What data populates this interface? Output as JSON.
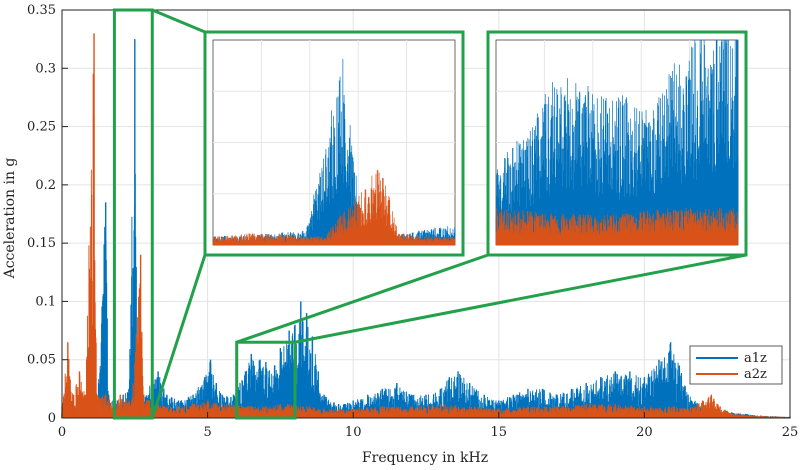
{
  "chart_data": {
    "type": "line",
    "title": "",
    "xlabel": "Frequency in kHz",
    "ylabel": "Acceleration in g",
    "xlim": [
      0,
      25
    ],
    "ylim": [
      0,
      0.35
    ],
    "grid": true,
    "x_ticks": [
      0,
      5,
      10,
      15,
      20,
      25
    ],
    "x_tick_labels": [
      "0",
      "5",
      "10",
      "15",
      "20",
      "25"
    ],
    "y_ticks": [
      0,
      0.05,
      0.1,
      0.15,
      0.2,
      0.25,
      0.3,
      0.35
    ],
    "y_tick_labels": [
      "0",
      "0.05",
      "0.1",
      "0.15",
      "0.2",
      "0.25",
      "0.3",
      "0.35"
    ],
    "legend_position": "lower-right",
    "series": [
      {
        "name": "a1z",
        "color": "#0072BD",
        "points": [
          [
            0.0,
            0.004
          ],
          [
            0.3,
            0.01
          ],
          [
            0.6,
            0.02
          ],
          [
            0.9,
            0.015
          ],
          [
            1.2,
            0.01
          ],
          [
            1.5,
            0.185
          ],
          [
            1.6,
            0.02
          ],
          [
            1.9,
            0.015
          ],
          [
            2.1,
            0.02
          ],
          [
            2.3,
            0.025
          ],
          [
            2.5,
            0.325
          ],
          [
            2.6,
            0.03
          ],
          [
            2.8,
            0.02
          ],
          [
            3.1,
            0.035
          ],
          [
            3.3,
            0.04
          ],
          [
            3.6,
            0.02
          ],
          [
            4.0,
            0.015
          ],
          [
            4.5,
            0.02
          ],
          [
            4.9,
            0.035
          ],
          [
            5.1,
            0.05
          ],
          [
            5.3,
            0.03
          ],
          [
            5.5,
            0.02
          ],
          [
            5.8,
            0.018
          ],
          [
            6.0,
            0.025
          ],
          [
            6.3,
            0.04
          ],
          [
            6.5,
            0.055
          ],
          [
            6.8,
            0.05
          ],
          [
            7.0,
            0.048
          ],
          [
            7.3,
            0.045
          ],
          [
            7.5,
            0.06
          ],
          [
            7.8,
            0.075
          ],
          [
            8.0,
            0.08
          ],
          [
            8.2,
            0.1
          ],
          [
            8.4,
            0.09
          ],
          [
            8.6,
            0.07
          ],
          [
            8.8,
            0.04
          ],
          [
            9.0,
            0.02
          ],
          [
            9.5,
            0.012
          ],
          [
            10.0,
            0.015
          ],
          [
            10.5,
            0.02
          ],
          [
            11.0,
            0.025
          ],
          [
            11.5,
            0.03
          ],
          [
            12.0,
            0.02
          ],
          [
            12.5,
            0.02
          ],
          [
            13.0,
            0.025
          ],
          [
            13.3,
            0.035
          ],
          [
            13.6,
            0.04
          ],
          [
            14.0,
            0.03
          ],
          [
            14.5,
            0.02
          ],
          [
            15.0,
            0.015
          ],
          [
            15.5,
            0.02
          ],
          [
            16.0,
            0.025
          ],
          [
            16.5,
            0.025
          ],
          [
            17.0,
            0.02
          ],
          [
            17.5,
            0.025
          ],
          [
            18.0,
            0.03
          ],
          [
            18.5,
            0.035
          ],
          [
            19.0,
            0.04
          ],
          [
            19.5,
            0.04
          ],
          [
            20.0,
            0.035
          ],
          [
            20.5,
            0.05
          ],
          [
            20.9,
            0.065
          ],
          [
            21.2,
            0.045
          ],
          [
            21.5,
            0.02
          ],
          [
            22.0,
            0.01
          ],
          [
            22.5,
            0.008
          ],
          [
            23.0,
            0.005
          ],
          [
            24.0,
            0.002
          ],
          [
            25.0,
            0.001
          ]
        ]
      },
      {
        "name": "a2z",
        "color": "#D95319",
        "points": [
          [
            0.0,
            0.01
          ],
          [
            0.2,
            0.065
          ],
          [
            0.4,
            0.02
          ],
          [
            0.6,
            0.04
          ],
          [
            0.8,
            0.02
          ],
          [
            1.1,
            0.33
          ],
          [
            1.2,
            0.02
          ],
          [
            1.5,
            0.02
          ],
          [
            1.8,
            0.015
          ],
          [
            2.0,
            0.02
          ],
          [
            2.4,
            0.015
          ],
          [
            2.7,
            0.14
          ],
          [
            2.8,
            0.02
          ],
          [
            3.0,
            0.015
          ],
          [
            3.5,
            0.01
          ],
          [
            4.0,
            0.01
          ],
          [
            4.5,
            0.012
          ],
          [
            5.0,
            0.015
          ],
          [
            5.5,
            0.012
          ],
          [
            6.0,
            0.012
          ],
          [
            6.5,
            0.01
          ],
          [
            7.0,
            0.01
          ],
          [
            7.5,
            0.012
          ],
          [
            8.0,
            0.012
          ],
          [
            8.5,
            0.01
          ],
          [
            9.0,
            0.008
          ],
          [
            10.0,
            0.008
          ],
          [
            11.0,
            0.01
          ],
          [
            12.0,
            0.01
          ],
          [
            13.0,
            0.012
          ],
          [
            14.0,
            0.01
          ],
          [
            15.0,
            0.008
          ],
          [
            16.0,
            0.01
          ],
          [
            17.0,
            0.01
          ],
          [
            18.0,
            0.012
          ],
          [
            19.0,
            0.012
          ],
          [
            20.0,
            0.01
          ],
          [
            21.0,
            0.01
          ],
          [
            21.5,
            0.008
          ],
          [
            22.0,
            0.015
          ],
          [
            22.3,
            0.02
          ],
          [
            22.6,
            0.01
          ],
          [
            23.0,
            0.004
          ],
          [
            24.0,
            0.002
          ],
          [
            25.0,
            0.001
          ]
        ]
      }
    ],
    "zoom_regions": [
      {
        "name": "zoom-low",
        "x_range": [
          1.8,
          3.1
        ],
        "y_range": [
          0,
          0.35
        ]
      },
      {
        "name": "zoom-mid",
        "x_range": [
          6.0,
          8.0
        ],
        "y_range": [
          0,
          0.065
        ]
      }
    ],
    "highlight_color": "#22A04A"
  }
}
